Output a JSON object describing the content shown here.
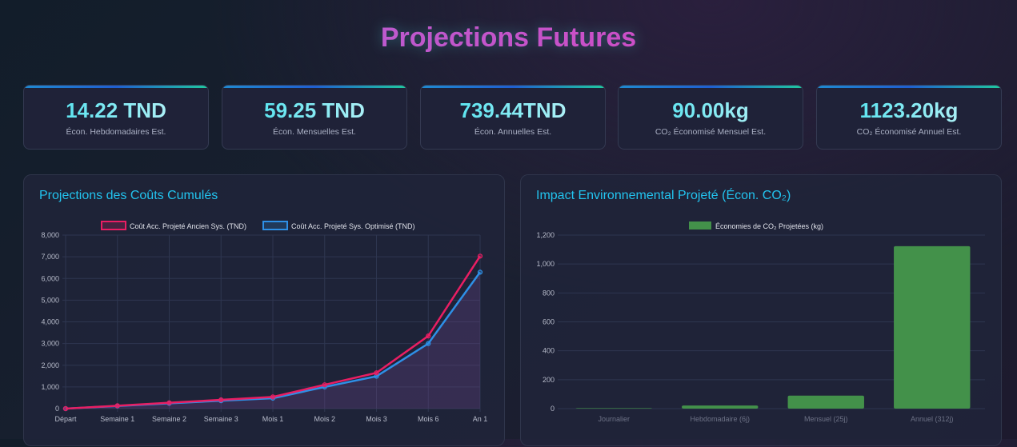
{
  "page": {
    "title": "Projections Futures"
  },
  "stats": [
    {
      "value": "14.22 TND",
      "label": "Écon. Hebdomadaires Est."
    },
    {
      "value": "59.25 TND",
      "label": "Écon. Mensuelles Est."
    },
    {
      "value": "739.44TND",
      "label": "Écon. Annuelles Est."
    },
    {
      "value": "90.00kg",
      "label": "CO₂ Économisé Mensuel Est."
    },
    {
      "value": "1123.20kg",
      "label": "CO₂ Économisé Annuel Est."
    }
  ],
  "panels": {
    "costs_title": "Projections des Coûts Cumulés",
    "co2_title": "Impact Environnemental Projeté (Écon. CO₂)"
  },
  "chart_data": [
    {
      "type": "line",
      "categories": [
        "Départ",
        "Semaine 1",
        "Semaine 2",
        "Semaine 3",
        "Mois 1",
        "Mois 2",
        "Mois 3",
        "Mois 6",
        "An 1"
      ],
      "series": [
        {
          "name": "Coût Acc. Projeté Ancien Sys. (TND)",
          "values": [
            0,
            135,
            270,
            405,
            540,
            1100,
            1650,
            3350,
            7030
          ],
          "color": "#e91e63"
        },
        {
          "name": "Coût Acc. Projeté Sys. Optimisé (TND)",
          "values": [
            0,
            121,
            242,
            362,
            480,
            1000,
            1490,
            3000,
            6290
          ],
          "color": "#2e8fe6",
          "fill": true
        }
      ],
      "yticks": [
        "0",
        "1,000",
        "2,000",
        "3,000",
        "4,000",
        "5,000",
        "6,000",
        "7,000",
        "8,000"
      ],
      "ylim": [
        0,
        8000
      ],
      "grid": true,
      "legend": "top"
    },
    {
      "type": "bar",
      "categories": [
        "Journalier",
        "Hebdomadaire (6j)",
        "Mensuel (25j)",
        "Annuel (312j)"
      ],
      "series": [
        {
          "name": "Économies de CO₂ Projetées (kg)",
          "values": [
            3.6,
            21.6,
            90,
            1123.2
          ],
          "color": "#43914a"
        }
      ],
      "yticks": [
        "0",
        "200",
        "400",
        "600",
        "800",
        "1,000",
        "1,200"
      ],
      "ylim": [
        0,
        1200
      ],
      "grid": true,
      "legend": "top"
    }
  ]
}
